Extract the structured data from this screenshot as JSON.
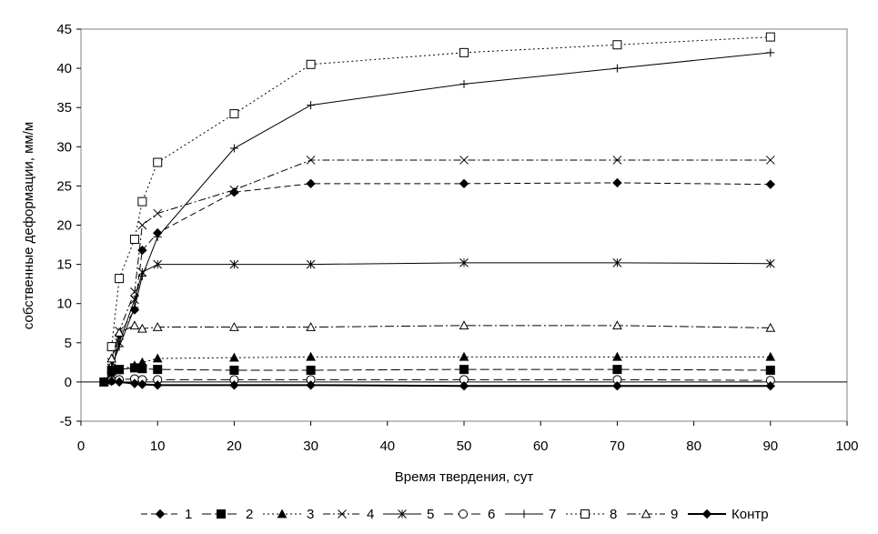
{
  "chart_data": {
    "type": "line",
    "title": "",
    "xlabel": "Время твердения, сут",
    "ylabel": "собственные деформации, мм/м",
    "xlim": [
      0,
      100
    ],
    "ylim": [
      -5,
      45
    ],
    "xticks": [
      0,
      10,
      20,
      30,
      40,
      50,
      60,
      70,
      80,
      90,
      100
    ],
    "yticks": [
      -5,
      0,
      5,
      10,
      15,
      20,
      25,
      30,
      35,
      40,
      45
    ],
    "grid": false,
    "legend_position": "bottom",
    "series": [
      {
        "name": "1",
        "marker": "diamond",
        "fill": true,
        "dash": "7,4",
        "color": "#000000",
        "x": [
          3,
          4,
          5,
          7,
          8,
          10,
          20,
          30,
          50,
          70,
          90
        ],
        "y": [
          0,
          1.2,
          6.0,
          9.2,
          16.8,
          19.0,
          24.2,
          25.3,
          25.3,
          25.4,
          25.2
        ]
      },
      {
        "name": "2",
        "marker": "square",
        "fill": true,
        "dash": "10,4",
        "color": "#000000",
        "x": [
          3,
          4,
          5,
          7,
          8,
          10,
          20,
          30,
          50,
          70,
          90
        ],
        "y": [
          0,
          1.4,
          1.6,
          1.8,
          1.7,
          1.6,
          1.5,
          1.5,
          1.6,
          1.6,
          1.5
        ]
      },
      {
        "name": "3",
        "marker": "triangle",
        "fill": true,
        "dash": "2,3",
        "color": "#000000",
        "x": [
          3,
          4,
          5,
          7,
          8,
          10,
          20,
          30,
          50,
          70,
          90
        ],
        "y": [
          0,
          0.8,
          1.5,
          2.1,
          2.5,
          3.0,
          3.1,
          3.2,
          3.2,
          3.2,
          3.2
        ]
      },
      {
        "name": "4",
        "marker": "x",
        "fill": false,
        "dash": "8,3,2,3",
        "color": "#000000",
        "x": [
          4,
          5,
          7,
          8,
          10,
          20,
          30,
          50,
          70,
          90
        ],
        "y": [
          2.5,
          6.5,
          11.5,
          20.0,
          21.5,
          24.5,
          28.3,
          28.3,
          28.3,
          28.3
        ]
      },
      {
        "name": "5",
        "marker": "asterisk",
        "fill": false,
        "dash": "",
        "color": "#000000",
        "x": [
          4,
          5,
          7,
          8,
          10,
          20,
          30,
          50,
          70,
          90
        ],
        "y": [
          1.8,
          5.0,
          10.5,
          14.0,
          15.0,
          15.0,
          15.0,
          15.2,
          15.2,
          15.1
        ]
      },
      {
        "name": "6",
        "marker": "circle",
        "fill": false,
        "dash": "10,5",
        "color": "#000000",
        "x": [
          4,
          5,
          7,
          8,
          10,
          20,
          30,
          50,
          70,
          90
        ],
        "y": [
          0.2,
          0.3,
          0.4,
          0.3,
          0.3,
          0.3,
          0.3,
          0.3,
          0.3,
          0.2
        ]
      },
      {
        "name": "7",
        "marker": "plus",
        "fill": false,
        "dash": "",
        "color": "#000000",
        "x": [
          4,
          5,
          7,
          8,
          10,
          20,
          30,
          50,
          70,
          90
        ],
        "y": [
          2.0,
          4.5,
          9.5,
          13.5,
          18.5,
          29.8,
          35.3,
          38.0,
          40.0,
          42.0
        ]
      },
      {
        "name": "8",
        "marker": "square",
        "fill": false,
        "dash": "2,3",
        "color": "#000000",
        "x": [
          4,
          5,
          7,
          8,
          10,
          20,
          30,
          50,
          70,
          90
        ],
        "y": [
          4.5,
          13.2,
          18.2,
          23.0,
          28.0,
          34.2,
          40.5,
          42.0,
          43.0,
          44.0
        ]
      },
      {
        "name": "9",
        "marker": "triangle",
        "fill": false,
        "dash": "10,3,2,3",
        "color": "#000000",
        "x": [
          4,
          5,
          7,
          8,
          10,
          20,
          30,
          50,
          70,
          90
        ],
        "y": [
          3.0,
          6.3,
          7.2,
          6.8,
          7.0,
          7.0,
          7.0,
          7.2,
          7.2,
          6.9
        ]
      },
      {
        "name": "Контр",
        "marker": "diamond",
        "fill": true,
        "dash": "",
        "color": "#000000",
        "x": [
          3,
          4,
          5,
          7,
          8,
          10,
          20,
          30,
          50,
          70,
          90
        ],
        "y": [
          0,
          0.1,
          0,
          -0.2,
          -0.3,
          -0.4,
          -0.4,
          -0.4,
          -0.5,
          -0.5,
          -0.5
        ]
      }
    ]
  }
}
